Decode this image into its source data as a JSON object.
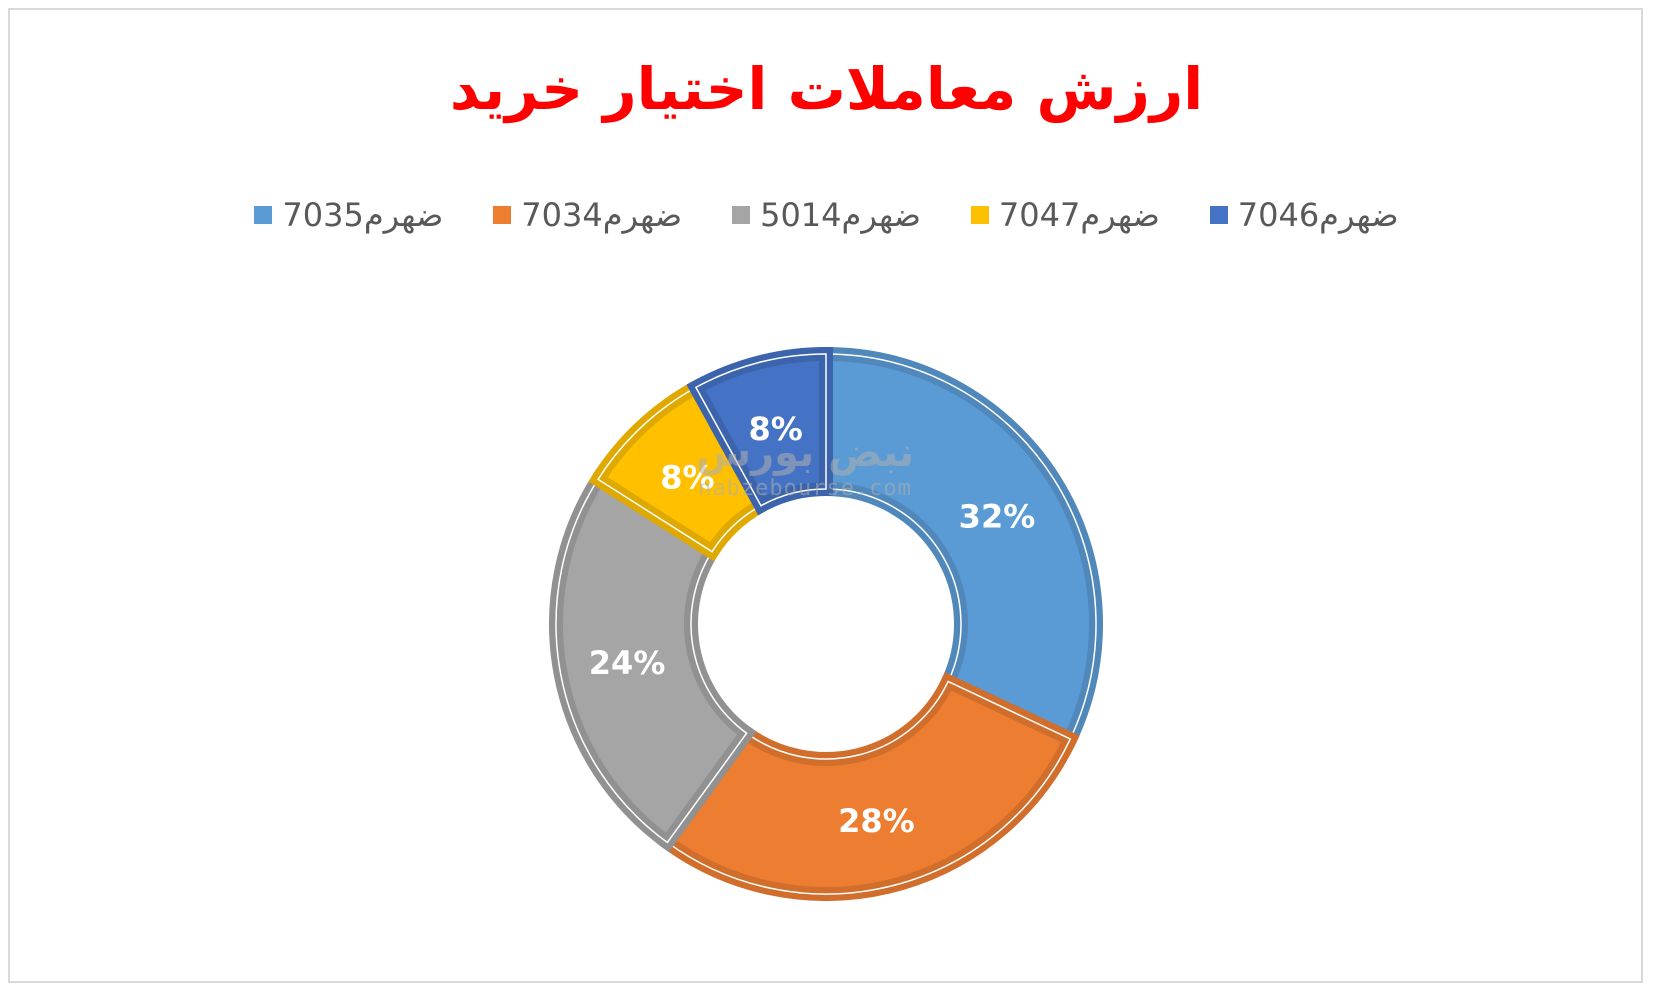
{
  "chart_data": {
    "type": "donut",
    "title": "ارزش معاملات اختیار خرید",
    "legend_position": "top",
    "series": [
      {
        "name": "ضهرم7035",
        "value": 32,
        "label": "32%",
        "color": "#5b9bd5"
      },
      {
        "name": "ضهرم7034",
        "value": 28,
        "label": "28%",
        "color": "#ed7d31"
      },
      {
        "name": "ضهرم5014",
        "value": 24,
        "label": "24%",
        "color": "#a5a5a5"
      },
      {
        "name": "ضهرم7047",
        "value": 8,
        "label": "8%",
        "color": "#ffc000"
      },
      {
        "name": "ضهرم7046",
        "value": 8,
        "label": "8%",
        "color": "#4472c4"
      }
    ]
  },
  "watermark": {
    "logo_text": "نبض بورس",
    "url": "nabzebourse.com"
  }
}
